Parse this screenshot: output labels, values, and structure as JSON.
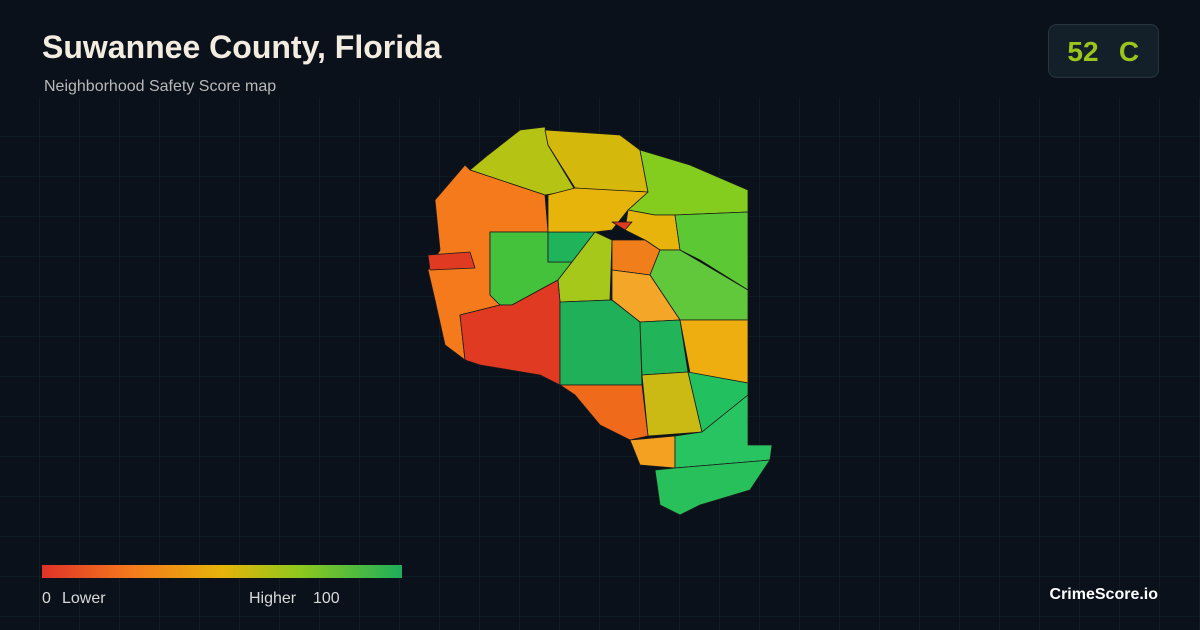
{
  "header": {
    "title": "Suwannee County, Florida",
    "subtitle": "Neighborhood Safety Score map"
  },
  "score": {
    "value": 52,
    "grade": "C"
  },
  "legend": {
    "min": 0,
    "min_label": "Lower",
    "max_label": "Higher",
    "max": 100
  },
  "brand": "CrimeScore.io"
}
